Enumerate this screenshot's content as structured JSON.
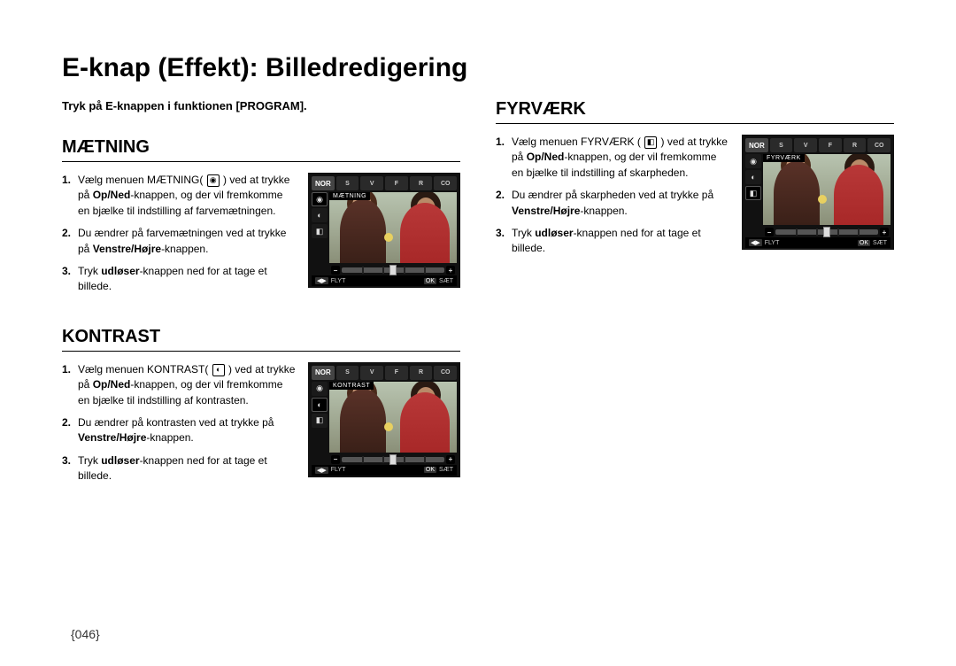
{
  "page_title": "E-knap (Effekt): Billedredigering",
  "page_number": "{046}",
  "intro_text": "Tryk på E-knappen i funktionen [PROGRAM].",
  "lcd_common": {
    "top_tabs": [
      "NOR",
      "S",
      "V",
      "F",
      "R",
      "CO"
    ],
    "side_icons": [
      "◉",
      "◐",
      "◧"
    ],
    "slider_minus": "−",
    "slider_plus": "+",
    "bottom_left_badge": "◀▶",
    "bottom_left_text": "FLYT",
    "bottom_right_badge": "OK",
    "bottom_right_text": "SÆT"
  },
  "sections": {
    "maetning": {
      "heading": "MÆTNING",
      "lcd_label": "MÆTNING",
      "active_side_index": 0,
      "steps": [
        {
          "num": "1.",
          "html": "Vælg menuen MÆTNING( <span class='inline-icon' data-name='saturation-icon' data-interactable='false'>◉</span> ) ved at trykke på <b>Op/Ned</b>-knappen, og der vil fremkomme en bjælke til indstilling af farvemætningen."
        },
        {
          "num": "2.",
          "html": "Du ændrer på farvemætningen ved at trykke på <b>Venstre/Højre</b>-knappen."
        },
        {
          "num": "3.",
          "html": "Tryk <b>udløser</b>-knappen ned for at tage et billede."
        }
      ]
    },
    "kontrast": {
      "heading": "KONTRAST",
      "lcd_label": "KONTRAST",
      "active_side_index": 1,
      "steps": [
        {
          "num": "1.",
          "html": "Vælg menuen KONTRAST( <span class='inline-icon' data-name='contrast-icon' data-interactable='false'>◐</span> ) ved at trykke på <b>Op/Ned</b>-knappen, og der vil fremkomme en bjælke til indstilling af kontrasten."
        },
        {
          "num": "2.",
          "html": "Du ændrer på kontrasten ved at trykke på <b>Venstre/Højre</b>-knappen."
        },
        {
          "num": "3.",
          "html": "Tryk <b>udløser</b>-knappen ned for at tage et billede."
        }
      ]
    },
    "fyrvaerk": {
      "heading": "FYRVÆRK",
      "lcd_label": "FYRVÆRK",
      "active_side_index": 2,
      "steps": [
        {
          "num": "1.",
          "html": "Vælg menuen FYRVÆRK ( <span class='inline-icon' data-name='sharpness-icon' data-interactable='false'>◧</span> ) ved at trykke på <b>Op/Ned</b>-knappen, og der vil fremkomme en bjælke til indstilling af skarpheden."
        },
        {
          "num": "2.",
          "html": "Du ændrer på skarpheden ved at trykke på <b>Venstre/Højre</b>-knappen."
        },
        {
          "num": "3.",
          "html": "Tryk <b>udløser</b>-knappen ned for at tage et billede."
        }
      ]
    }
  }
}
